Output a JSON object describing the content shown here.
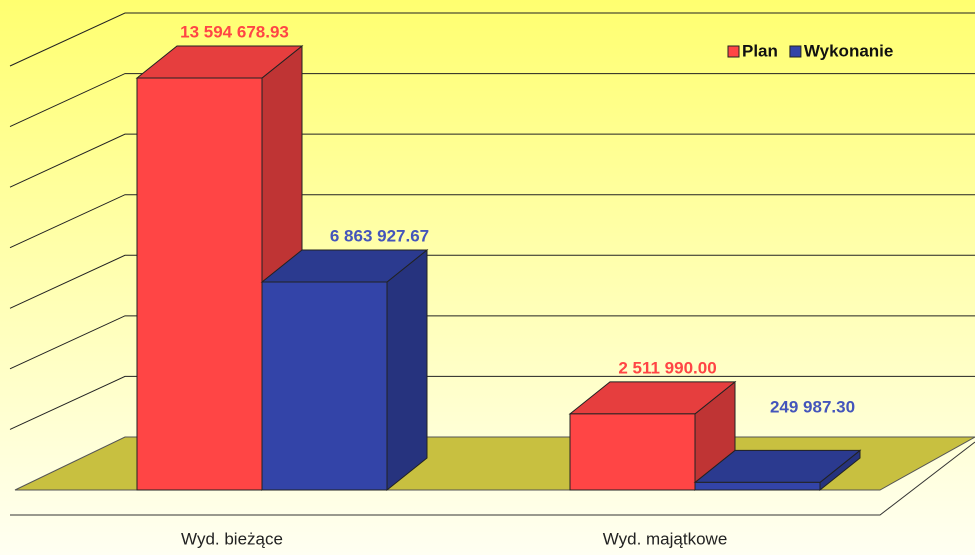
{
  "chart_data": {
    "type": "bar3d",
    "categories": [
      "Wyd. bieżące",
      "Wyd. majątkowe"
    ],
    "series": [
      {
        "name": "Plan",
        "color": "#ff4545",
        "values": [
          13594678.93,
          2511990.0
        ],
        "value_labels": [
          "13 594 678.93",
          "2 511 990.00"
        ]
      },
      {
        "name": "Wykonanie",
        "color": "#3344a8",
        "values": [
          6863927.67,
          249987.3
        ],
        "value_labels": [
          "6 863 927.67",
          "249 987.30"
        ]
      }
    ],
    "ylim": [
      0,
      16000000
    ],
    "yticks": [
      0,
      2000000,
      4000000,
      6000000,
      8000000,
      10000000,
      12000000,
      14000000
    ],
    "grid": true,
    "legend": "top-right"
  }
}
